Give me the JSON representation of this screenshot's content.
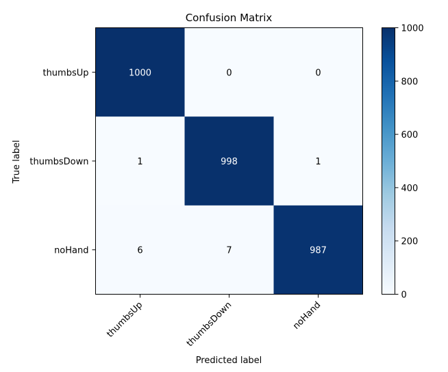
{
  "chart_data": {
    "type": "heatmap",
    "title": "Confusion Matrix",
    "xlabel": "Predicted label",
    "ylabel": "True label",
    "x_categories": [
      "thumbsUp",
      "thumbsDown",
      "noHand"
    ],
    "y_categories": [
      "thumbsUp",
      "thumbsDown",
      "noHand"
    ],
    "values": [
      [
        1000,
        0,
        0
      ],
      [
        1,
        998,
        1
      ],
      [
        6,
        7,
        987
      ]
    ],
    "colormap": "Blues",
    "value_range": [
      0,
      1000
    ],
    "colorbar_ticks": [
      "0",
      "200",
      "400",
      "600",
      "800",
      "1000"
    ],
    "colorbar_tick_values": [
      0,
      200,
      400,
      600,
      800,
      1000
    ],
    "text_colors": {
      "light": "#ffffff",
      "dark": "#000000"
    },
    "grid": false
  }
}
